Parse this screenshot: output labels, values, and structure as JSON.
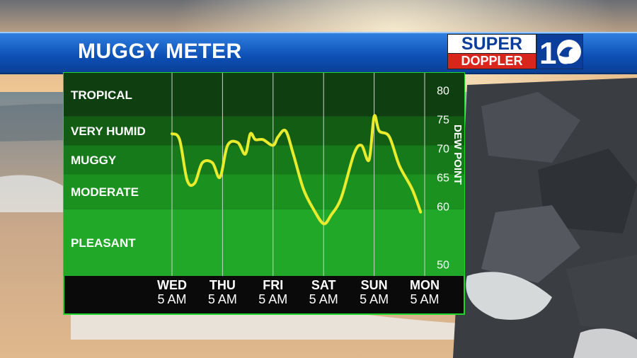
{
  "header": {
    "title": "MUGGY METER"
  },
  "logo": {
    "line1": "SUPER",
    "line2": "DOPPLER",
    "number": "10"
  },
  "colors": {
    "line": "#e8ec2c",
    "bands": [
      "#0f3f10",
      "#125c14",
      "#16791a",
      "#1b9220",
      "#21a828"
    ],
    "title_bar": "#1a5fcc"
  },
  "chart_data": {
    "type": "line",
    "ylabel": "DEW POINT",
    "ylim": [
      48,
      83
    ],
    "yticks": [
      50,
      60,
      65,
      70,
      75,
      80
    ],
    "xlim": [
      0,
      5
    ],
    "categories": [
      {
        "day": "WED",
        "time": "5 AM"
      },
      {
        "day": "THU",
        "time": "5 AM"
      },
      {
        "day": "FRI",
        "time": "5 AM"
      },
      {
        "day": "SAT",
        "time": "5 AM"
      },
      {
        "day": "SUN",
        "time": "5 AM"
      },
      {
        "day": "MON",
        "time": "5 AM"
      }
    ],
    "bands": [
      {
        "label": "TROPICAL",
        "from": 75.5,
        "to": 83
      },
      {
        "label": "VERY HUMID",
        "from": 70.5,
        "to": 75.5
      },
      {
        "label": "MUGGY",
        "from": 65.5,
        "to": 70.5
      },
      {
        "label": "MODERATE",
        "from": 59.5,
        "to": 65.5
      },
      {
        "label": "PLEASANT",
        "from": 48,
        "to": 59.5
      }
    ],
    "grid": true,
    "series": [
      {
        "x": [
          0,
          0.15,
          0.3,
          0.45,
          0.6,
          0.8,
          0.95,
          1.1,
          1.3,
          1.45,
          1.55,
          1.65,
          1.8,
          2.0,
          2.1,
          2.25,
          2.4,
          2.6,
          2.8,
          3.0,
          3.15,
          3.35,
          3.6,
          3.75,
          3.9,
          4.0,
          4.1,
          4.3,
          4.5,
          4.75,
          4.92
        ],
        "y": [
          72.5,
          71.5,
          64.5,
          64.0,
          67.5,
          67.5,
          65.0,
          70.5,
          71.0,
          69.0,
          72.5,
          71.5,
          71.5,
          70.5,
          72.0,
          73.0,
          69.0,
          63.0,
          59.5,
          57.0,
          58.5,
          61.5,
          69.0,
          70.5,
          68.0,
          75.5,
          73.0,
          72.0,
          67.0,
          63.0,
          59.0
        ]
      }
    ]
  }
}
